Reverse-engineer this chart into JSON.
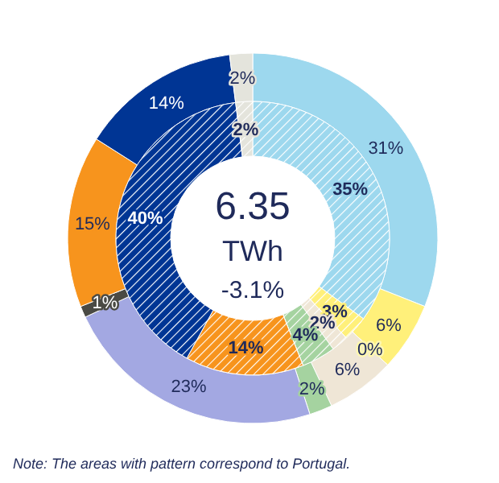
{
  "chart_data": {
    "type": "donut",
    "categories": [
      null,
      null,
      null,
      null,
      null,
      null,
      null,
      null,
      null,
      null
    ],
    "colors": [
      "#9dd8ee",
      "#fff07a",
      "#fff7b0",
      "#efe6d6",
      "#a5d3a0",
      "#a3a8e2",
      "#4a4a44",
      "#f7941d",
      "#003594",
      "#e4e4dc"
    ],
    "series": [
      {
        "values": [
          31,
          6,
          0,
          6,
          2,
          23,
          1,
          15,
          14,
          2
        ],
        "value_labels": [
          "31%",
          "6%",
          "0%",
          "6%",
          "2%",
          "23%",
          "1%",
          "15%",
          "14%",
          "2%"
        ]
      },
      {
        "values": [
          35,
          3,
          0,
          2,
          4,
          0,
          0,
          14,
          40,
          2
        ],
        "value_labels": [
          "35%",
          "3%",
          null,
          "2%",
          "4%",
          null,
          null,
          "14%",
          "40%",
          "2%"
        ]
      }
    ],
    "annotations": [
      "6.35",
      "TWh",
      "-3.1%",
      "Note: The  areas with pattern correspond  to Portugal."
    ]
  }
}
